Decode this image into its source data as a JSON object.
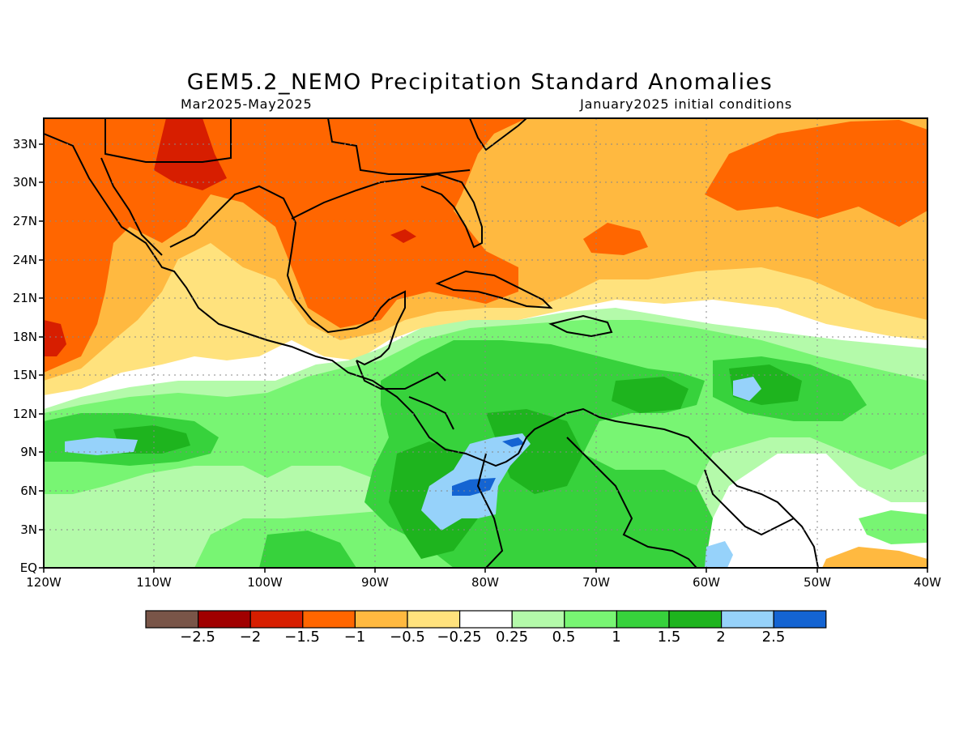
{
  "title": "GEM5.2_NEMO Precipitation Standard Anomalies",
  "period": "Mar2025-May2025",
  "initial_conditions": "January2025 initial conditions",
  "map": {
    "lon_range": [
      -120,
      -40
    ],
    "lat_range": [
      0,
      35
    ],
    "lat_ticks": [
      "33N",
      "30N",
      "27N",
      "24N",
      "21N",
      "18N",
      "15N",
      "12N",
      "9N",
      "6N",
      "3N",
      "EQ"
    ],
    "lon_ticks": [
      "120W",
      "110W",
      "100W",
      "90W",
      "80W",
      "70W",
      "60W",
      "50W",
      "40W"
    ]
  },
  "colorbar": {
    "colors": [
      "#795548",
      "#a00000",
      "#d71e00",
      "#ff6600",
      "#ffb940",
      "#ffe27d",
      "#ffffff",
      "#b4faaa",
      "#78f573",
      "#37d23c",
      "#1eb41e",
      "#96d2fa",
      "#1464d2"
    ],
    "labels": [
      "−2.5",
      "−2",
      "−1.5",
      "−1",
      "−0.5",
      "−0.25",
      "0.25",
      "0.5",
      "1",
      "1.5",
      "2",
      "2.5"
    ]
  }
}
